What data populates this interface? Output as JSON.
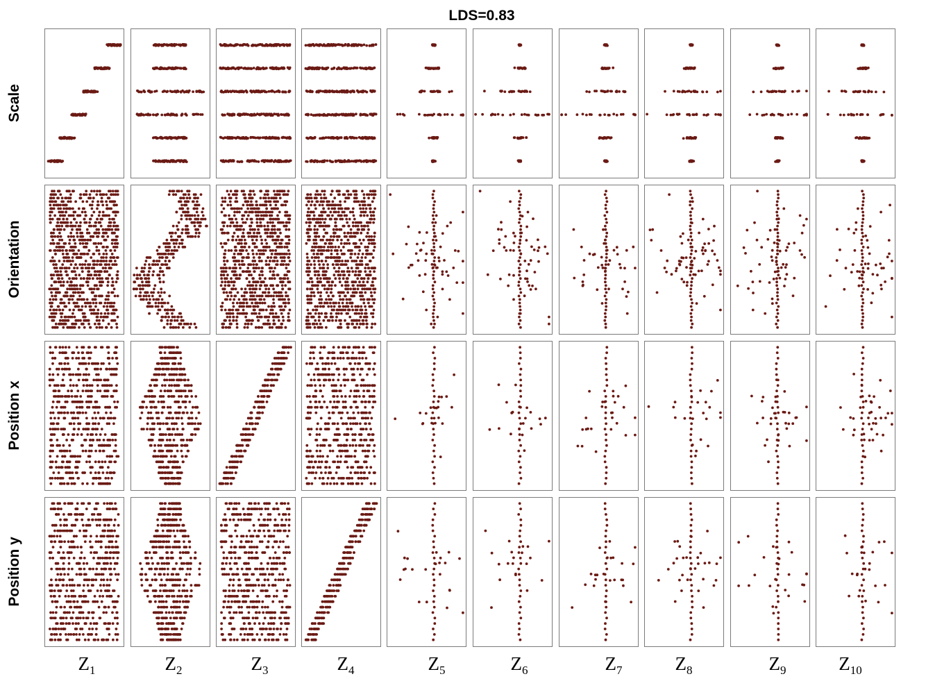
{
  "chart_data": {
    "type": "scatter",
    "title": "LDS=0.83",
    "layout": "grid",
    "rows": [
      "Scale",
      "Orientation",
      "Position x",
      "Position y"
    ],
    "columns": [
      {
        "base": "Z",
        "sub": "1"
      },
      {
        "base": "Z",
        "sub": "2"
      },
      {
        "base": "Z",
        "sub": "3"
      },
      {
        "base": "Z",
        "sub": "4"
      },
      {
        "base": "Z",
        "sub": "5"
      },
      {
        "base": "Z",
        "sub": "6"
      },
      {
        "base": "Z",
        "sub": "7"
      },
      {
        "base": "Z",
        "sub": "8"
      },
      {
        "base": "Z",
        "sub": "9"
      },
      {
        "base": "Z",
        "sub": "10"
      }
    ],
    "axes_visible": false,
    "grid": false,
    "point_color": "#6b1a14",
    "panels": {
      "Scale": {
        "levels": 6,
        "Z1": "monotonic: latent increases stepwise with scale level",
        "Z2": "wide spread per level, centered",
        "Z3": "full-width uniform spread",
        "Z4": "full-width uniform spread",
        "Z5-Z10": "collapsed near center (inactive latents) with sparse outliers"
      },
      "Orientation": {
        "Z1": "uniform spread",
        "Z2": "oscillating (periodic) dependence on orientation",
        "Z3": "uniform spread",
        "Z4": "uniform spread",
        "Z5-Z10": "collapsed near center with scattered outliers"
      },
      "Position x": {
        "Z1": "uniform spread",
        "Z2": "diamond-shaped spread",
        "Z3": "monotonic linear dependence on position x",
        "Z4": "uniform spread",
        "Z5-Z10": "collapsed near center with scattered outliers"
      },
      "Position y": {
        "Z1": "uniform spread",
        "Z2": "diamond-shaped spread",
        "Z3": "uniform spread",
        "Z4": "monotonic linear dependence on position y",
        "Z5-Z10": "collapsed near center with scattered outliers"
      }
    }
  }
}
